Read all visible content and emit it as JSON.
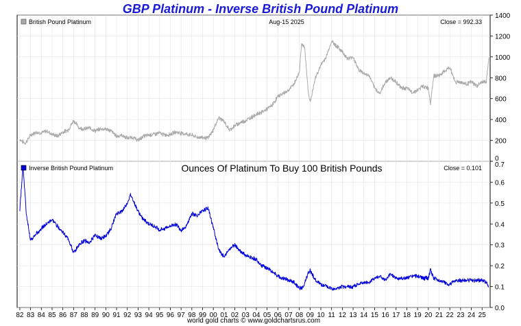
{
  "title": "GBP Platinum - Inverse British Pound Platinum",
  "footer": "world gold charts © www.goldchartsrus.com",
  "chart_data": [
    {
      "type": "line",
      "legend": "British Pound Platinum",
      "date_label": "Aug-15  2025",
      "close_label": "Close = 992.33",
      "color": "#aaaaaa",
      "ylim": [
        0,
        1400
      ],
      "yticks": [
        "0",
        "200",
        "400",
        "600",
        "800",
        "1000",
        "1200",
        "1400"
      ],
      "grid": true,
      "x": [
        1982.0,
        1982.5,
        1983.0,
        1983.5,
        1984.0,
        1984.5,
        1985.0,
        1985.5,
        1986.0,
        1986.5,
        1987.0,
        1987.25,
        1987.5,
        1988.0,
        1988.5,
        1989.0,
        1989.5,
        1990.0,
        1990.5,
        1991.0,
        1991.5,
        1992.0,
        1992.5,
        1993.0,
        1993.5,
        1994.0,
        1994.5,
        1995.0,
        1995.5,
        1996.0,
        1996.5,
        1997.0,
        1997.5,
        1998.0,
        1998.5,
        1999.0,
        1999.5,
        2000.0,
        2000.5,
        2001.0,
        2001.5,
        2002.0,
        2002.5,
        2003.0,
        2003.5,
        2004.0,
        2004.5,
        2005.0,
        2005.5,
        2006.0,
        2006.5,
        2007.0,
        2007.5,
        2008.0,
        2008.2,
        2008.5,
        2008.8,
        2009.0,
        2009.5,
        2010.0,
        2010.5,
        2011.0,
        2011.5,
        2012.0,
        2012.5,
        2013.0,
        2013.5,
        2014.0,
        2014.5,
        2015.0,
        2015.5,
        2016.0,
        2016.5,
        2017.0,
        2017.5,
        2018.0,
        2018.5,
        2019.0,
        2019.5,
        2020.0,
        2020.2,
        2020.5,
        2021.0,
        2021.5,
        2022.0,
        2022.5,
        2023.0,
        2023.5,
        2024.0,
        2024.5,
        2025.0,
        2025.4,
        2025.62
      ],
      "values": [
        210,
        170,
        250,
        280,
        270,
        290,
        260,
        240,
        280,
        300,
        390,
        360,
        320,
        310,
        320,
        290,
        310,
        310,
        290,
        240,
        250,
        220,
        230,
        200,
        240,
        250,
        260,
        270,
        250,
        260,
        280,
        270,
        260,
        250,
        230,
        230,
        220,
        300,
        420,
        380,
        300,
        340,
        370,
        390,
        420,
        450,
        470,
        500,
        540,
        620,
        650,
        680,
        740,
        850,
        1130,
        1080,
        700,
        560,
        800,
        920,
        1000,
        1150,
        1100,
        1050,
        980,
        1000,
        880,
        840,
        820,
        700,
        650,
        760,
        800,
        760,
        700,
        700,
        660,
        680,
        720,
        700,
        560,
        820,
        820,
        860,
        900,
        760,
        760,
        740,
        760,
        720,
        760,
        760,
        992
      ]
    },
    {
      "type": "line",
      "legend": "Inverse British Pound Platinum",
      "subtitle": "Ounces Of Platinum To Buy 100 British Pounds",
      "close_label": "Close = 0.101",
      "color": "#0000dd",
      "ylim": [
        0,
        0.7
      ],
      "yticks": [
        "0.0",
        "0.1",
        "0.2",
        "0.3",
        "0.4",
        "0.5",
        "0.6",
        "0.7"
      ],
      "xticks": [
        "82",
        "83",
        "84",
        "85",
        "86",
        "87",
        "88",
        "89",
        "90",
        "91",
        "92",
        "93",
        "94",
        "95",
        "96",
        "97",
        "98",
        "99",
        "00",
        "01",
        "02",
        "03",
        "04",
        "05",
        "06",
        "07",
        "08",
        "09",
        "10",
        "11",
        "12",
        "13",
        "14",
        "15",
        "16",
        "17",
        "18",
        "19",
        "20",
        "21",
        "22",
        "23",
        "24",
        "25"
      ],
      "grid": true,
      "x": [
        1982.0,
        1982.3,
        1982.6,
        1983.0,
        1983.5,
        1984.0,
        1984.5,
        1985.0,
        1985.5,
        1986.0,
        1986.5,
        1987.0,
        1987.5,
        1988.0,
        1988.5,
        1989.0,
        1989.5,
        1990.0,
        1990.5,
        1991.0,
        1991.5,
        1992.0,
        1992.3,
        1992.5,
        1993.0,
        1993.5,
        1994.0,
        1994.5,
        1995.0,
        1995.5,
        1996.0,
        1996.5,
        1997.0,
        1997.5,
        1998.0,
        1998.5,
        1999.0,
        1999.5,
        2000.0,
        2000.5,
        2001.0,
        2001.5,
        2002.0,
        2002.5,
        2003.0,
        2003.5,
        2004.0,
        2004.5,
        2005.0,
        2005.5,
        2006.0,
        2006.5,
        2007.0,
        2007.5,
        2008.0,
        2008.4,
        2008.8,
        2009.0,
        2009.5,
        2010.0,
        2010.5,
        2011.0,
        2011.5,
        2012.0,
        2012.5,
        2013.0,
        2013.5,
        2014.0,
        2014.5,
        2015.0,
        2015.5,
        2016.0,
        2016.5,
        2017.0,
        2017.5,
        2018.0,
        2018.5,
        2019.0,
        2019.5,
        2020.0,
        2020.2,
        2020.5,
        2021.0,
        2021.5,
        2022.0,
        2022.5,
        2023.0,
        2023.5,
        2024.0,
        2024.5,
        2025.0,
        2025.4,
        2025.62
      ],
      "values": [
        0.47,
        0.68,
        0.45,
        0.32,
        0.35,
        0.38,
        0.4,
        0.42,
        0.39,
        0.36,
        0.33,
        0.26,
        0.3,
        0.32,
        0.31,
        0.35,
        0.33,
        0.34,
        0.38,
        0.45,
        0.46,
        0.5,
        0.54,
        0.52,
        0.46,
        0.42,
        0.4,
        0.39,
        0.37,
        0.38,
        0.39,
        0.4,
        0.37,
        0.39,
        0.45,
        0.44,
        0.46,
        0.48,
        0.38,
        0.28,
        0.24,
        0.28,
        0.3,
        0.27,
        0.25,
        0.24,
        0.23,
        0.2,
        0.19,
        0.17,
        0.15,
        0.14,
        0.13,
        0.12,
        0.09,
        0.1,
        0.16,
        0.18,
        0.13,
        0.11,
        0.1,
        0.09,
        0.09,
        0.1,
        0.1,
        0.1,
        0.11,
        0.12,
        0.12,
        0.14,
        0.15,
        0.13,
        0.16,
        0.14,
        0.14,
        0.14,
        0.15,
        0.15,
        0.14,
        0.14,
        0.18,
        0.14,
        0.13,
        0.12,
        0.11,
        0.13,
        0.13,
        0.13,
        0.13,
        0.13,
        0.13,
        0.12,
        0.101
      ]
    }
  ]
}
